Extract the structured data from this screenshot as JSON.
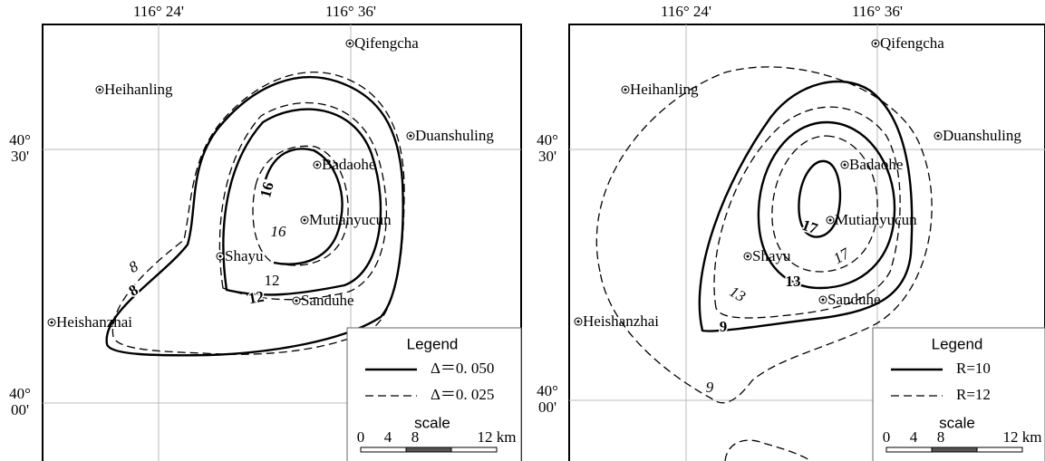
{
  "panels": [
    {
      "lon_labels": [
        "116° 24'",
        "116° 36'"
      ],
      "lat_labels": [
        [
          "40°",
          "30'"
        ],
        [
          "40°",
          "00'"
        ]
      ],
      "places": [
        "Qifengcha",
        "Heihanling",
        "Duanshuling",
        "Badaohe",
        "Mutianyucun",
        "Shayu",
        "Sanduhe",
        "Heishanzhai"
      ],
      "contour_labels": [
        "16",
        "16",
        "12",
        "12",
        "8",
        "8"
      ],
      "legend": {
        "title": "Legend",
        "items": [
          "Δ＝0. 050",
          "Δ＝0. 025"
        ],
        "scale_title": "scale",
        "scale_ticks": [
          "0",
          "4",
          "8",
          "12 km"
        ]
      }
    },
    {
      "lon_labels": [
        "116° 24'",
        "116° 36'"
      ],
      "lat_labels": [
        [
          "40°",
          "30'"
        ],
        [
          "40°",
          "00'"
        ]
      ],
      "places": [
        "Qifengcha",
        "Heihanling",
        "Duanshuling",
        "Badaohe",
        "Mutianyucun",
        "Shayu",
        "Sanduhe",
        "Heishanzhai"
      ],
      "contour_labels": [
        "17",
        "17",
        "13",
        "13",
        "9",
        "9"
      ],
      "legend": {
        "title": "Legend",
        "items": [
          "R=10",
          "R=12"
        ],
        "scale_title": "scale",
        "scale_ticks": [
          "0",
          "4",
          "8",
          "12 km"
        ]
      }
    }
  ]
}
